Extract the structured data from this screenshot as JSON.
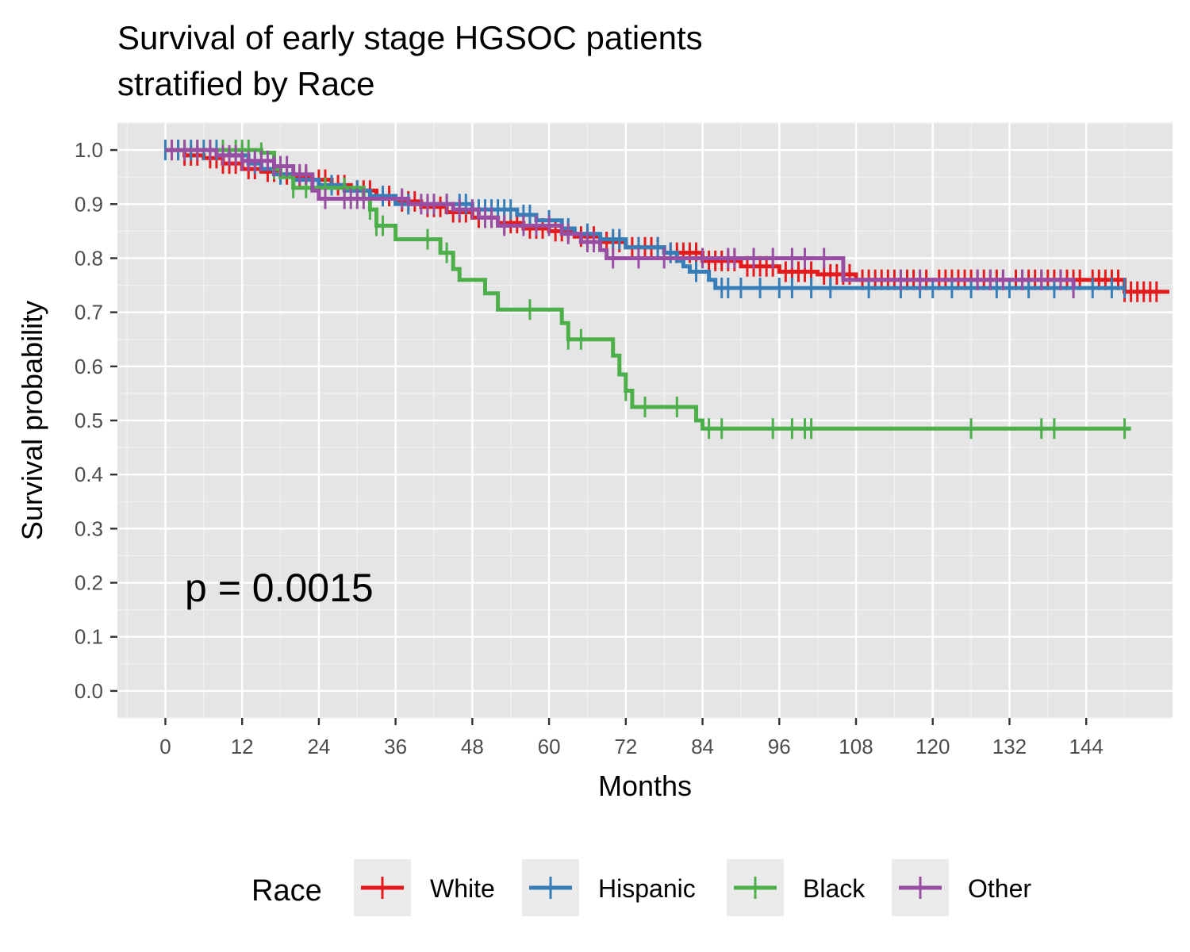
{
  "chart_data": {
    "type": "line",
    "subtype": "kaplan-meier",
    "title": "Survival of early stage HGSOC patients",
    "subtitle": "stratified by Race",
    "xlabel": "Months",
    "ylabel": "Survival probability",
    "xlim": [
      -7.5,
      157.5
    ],
    "ylim": [
      -0.05,
      1.05
    ],
    "x_ticks": [
      0,
      12,
      24,
      36,
      48,
      60,
      72,
      84,
      96,
      108,
      120,
      132,
      144
    ],
    "y_ticks": [
      "0.0",
      "0.1",
      "0.2",
      "0.3",
      "0.4",
      "0.5",
      "0.6",
      "0.7",
      "0.8",
      "0.9",
      "1.0"
    ],
    "grid": true,
    "annotation": "p = 0.0015",
    "legend": {
      "title": "Race",
      "position": "bottom",
      "entries": [
        "White",
        "Hispanic",
        "Black",
        "Other"
      ]
    },
    "series": [
      {
        "name": "White",
        "color": "#e41a1c",
        "steps": [
          [
            0,
            1.0
          ],
          [
            3,
            0.99
          ],
          [
            6,
            0.985
          ],
          [
            9,
            0.975
          ],
          [
            12,
            0.965
          ],
          [
            15,
            0.96
          ],
          [
            18,
            0.955
          ],
          [
            20,
            0.95
          ],
          [
            23,
            0.945
          ],
          [
            26,
            0.935
          ],
          [
            29,
            0.925
          ],
          [
            33,
            0.915
          ],
          [
            36,
            0.905
          ],
          [
            40,
            0.895
          ],
          [
            44,
            0.885
          ],
          [
            48,
            0.875
          ],
          [
            52,
            0.865
          ],
          [
            56,
            0.855
          ],
          [
            60,
            0.85
          ],
          [
            64,
            0.84
          ],
          [
            68,
            0.83
          ],
          [
            72,
            0.82
          ],
          [
            78,
            0.81
          ],
          [
            84,
            0.795
          ],
          [
            90,
            0.785
          ],
          [
            96,
            0.775
          ],
          [
            102,
            0.77
          ],
          [
            108,
            0.76
          ],
          [
            150,
            0.738
          ],
          [
            157,
            0.738
          ]
        ],
        "censor": [
          1,
          2,
          3,
          4,
          5,
          7,
          8,
          9,
          10,
          11,
          13,
          14,
          16,
          17,
          19,
          21,
          22,
          24,
          25,
          27,
          28,
          30,
          31,
          32,
          34,
          35,
          37,
          38,
          39,
          41,
          42,
          43,
          45,
          46,
          47,
          49,
          50,
          51,
          53,
          54,
          55,
          57,
          58,
          59,
          61,
          62,
          63,
          65,
          66,
          67,
          69,
          70,
          71,
          73,
          74,
          75,
          76,
          77,
          79,
          80,
          81,
          82,
          83,
          85,
          86,
          87,
          88,
          89,
          91,
          92,
          93,
          94,
          95,
          97,
          98,
          99,
          100,
          101,
          103,
          104,
          105,
          106,
          107,
          109,
          110,
          111,
          112,
          113,
          114,
          115,
          116,
          117,
          118,
          119,
          121,
          122,
          123,
          124,
          125,
          126,
          127,
          128,
          129,
          130,
          131,
          133,
          134,
          135,
          136,
          137,
          138,
          139,
          140,
          141,
          142,
          143,
          145,
          146,
          147,
          148,
          149,
          150,
          151,
          152,
          153,
          154,
          155
        ]
      },
      {
        "name": "Hispanic",
        "color": "#377eb8",
        "steps": [
          [
            0,
            1.0
          ],
          [
            10,
            0.99
          ],
          [
            13,
            0.975
          ],
          [
            15,
            0.965
          ],
          [
            17,
            0.955
          ],
          [
            20,
            0.945
          ],
          [
            24,
            0.935
          ],
          [
            28,
            0.925
          ],
          [
            32,
            0.915
          ],
          [
            36,
            0.9
          ],
          [
            48,
            0.89
          ],
          [
            55,
            0.88
          ],
          [
            58,
            0.87
          ],
          [
            62,
            0.855
          ],
          [
            64,
            0.845
          ],
          [
            68,
            0.835
          ],
          [
            72,
            0.82
          ],
          [
            78,
            0.81
          ],
          [
            80,
            0.795
          ],
          [
            81,
            0.785
          ],
          [
            82,
            0.775
          ],
          [
            85,
            0.76
          ],
          [
            86,
            0.745
          ],
          [
            150,
            0.745
          ]
        ],
        "censor": [
          0,
          2,
          4,
          6,
          8,
          12,
          14,
          18,
          22,
          26,
          30,
          34,
          38,
          42,
          44,
          46,
          47,
          49,
          50,
          51,
          52,
          53,
          54,
          56,
          57,
          60,
          63,
          66,
          70,
          71,
          74,
          77,
          79,
          83,
          87,
          88,
          90,
          93,
          96,
          98,
          101,
          104,
          110,
          115,
          118,
          120,
          123,
          126,
          130,
          132,
          135,
          139,
          142,
          145,
          148,
          150
        ]
      },
      {
        "name": "Black",
        "color": "#4daf4a",
        "steps": [
          [
            0,
            1.0
          ],
          [
            15,
            0.995
          ],
          [
            17,
            0.965
          ],
          [
            18,
            0.95
          ],
          [
            20,
            0.93
          ],
          [
            31,
            0.91
          ],
          [
            32,
            0.89
          ],
          [
            33,
            0.86
          ],
          [
            36,
            0.835
          ],
          [
            43,
            0.81
          ],
          [
            45,
            0.78
          ],
          [
            46,
            0.76
          ],
          [
            50,
            0.735
          ],
          [
            52,
            0.705
          ],
          [
            62,
            0.68
          ],
          [
            63,
            0.65
          ],
          [
            70,
            0.62
          ],
          [
            71,
            0.585
          ],
          [
            72,
            0.555
          ],
          [
            73,
            0.525
          ],
          [
            83,
            0.5
          ],
          [
            84,
            0.485
          ],
          [
            151,
            0.485
          ]
        ],
        "censor": [
          3,
          5,
          7,
          9,
          11,
          12,
          13,
          15,
          17,
          20,
          22,
          25,
          28,
          32,
          33,
          34,
          41,
          44,
          57,
          63,
          65,
          72,
          75,
          80,
          85,
          87,
          95,
          98,
          100,
          101,
          126,
          137,
          139,
          150
        ]
      },
      {
        "name": "Other",
        "color": "#984ea3",
        "steps": [
          [
            0,
            1.0
          ],
          [
            8,
            0.99
          ],
          [
            12,
            0.98
          ],
          [
            17,
            0.97
          ],
          [
            20,
            0.955
          ],
          [
            23,
            0.925
          ],
          [
            24,
            0.91
          ],
          [
            32,
            0.91
          ],
          [
            38,
            0.9
          ],
          [
            45,
            0.89
          ],
          [
            49,
            0.875
          ],
          [
            52,
            0.86
          ],
          [
            62,
            0.845
          ],
          [
            65,
            0.83
          ],
          [
            68,
            0.815
          ],
          [
            69,
            0.8
          ],
          [
            86,
            0.8
          ],
          [
            90,
            0.8
          ],
          [
            105,
            0.8
          ],
          [
            106,
            0.76
          ],
          [
            142,
            0.745
          ]
        ],
        "censor": [
          1,
          3,
          5,
          7,
          9,
          10,
          11,
          12,
          13,
          14,
          15,
          16,
          17,
          18,
          19,
          21,
          22,
          25,
          28,
          29,
          30,
          31,
          37,
          40,
          41,
          42,
          44,
          46,
          48,
          50,
          51,
          53,
          56,
          58,
          60,
          63,
          66,
          67,
          70,
          74,
          78,
          84,
          88,
          89,
          92,
          95,
          98,
          100,
          103,
          115,
          118,
          127,
          129,
          131,
          134,
          137,
          140,
          142
        ]
      }
    ]
  }
}
